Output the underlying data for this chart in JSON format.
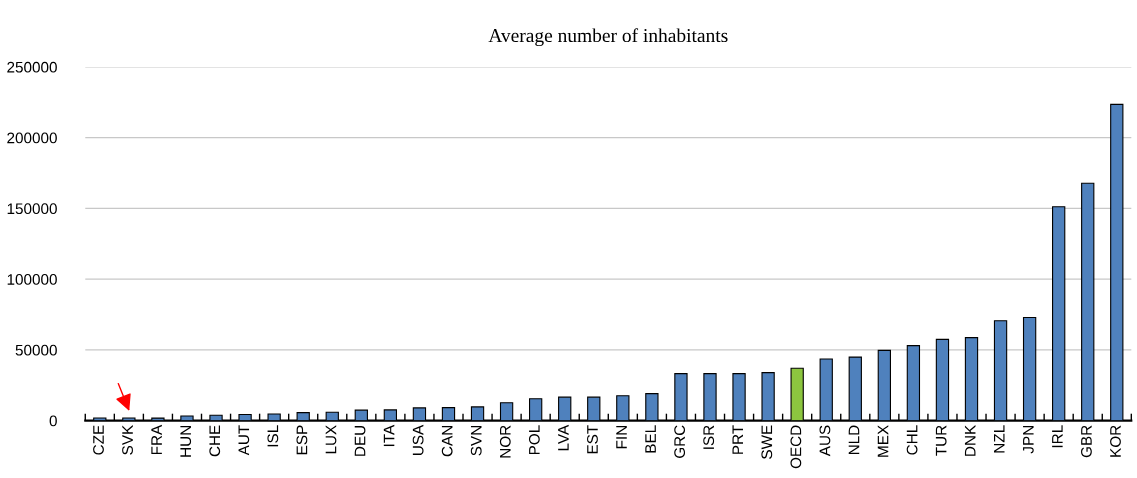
{
  "chart_data": {
    "type": "bar",
    "title": "Average number of inhabitants",
    "categories": [
      "CZE",
      "SVK",
      "FRA",
      "HUN",
      "CHE",
      "AUT",
      "ISL",
      "ESP",
      "LUX",
      "DEU",
      "ITA",
      "USA",
      "CAN",
      "SVN",
      "NOR",
      "POL",
      "LVA",
      "EST",
      "FIN",
      "BEL",
      "GRC",
      "ISR",
      "PRT",
      "SWE",
      "OECD",
      "AUS",
      "NLD",
      "MEX",
      "CHL",
      "TUR",
      "DNK",
      "NZL",
      "JPN",
      "IRL",
      "GBR",
      "KOR"
    ],
    "values": [
      1900,
      1900,
      1800,
      3300,
      3800,
      4300,
      4700,
      5700,
      5900,
      7400,
      7600,
      9000,
      9200,
      9700,
      12600,
      15500,
      16600,
      16600,
      17600,
      19100,
      33200,
      33200,
      33200,
      33900,
      37000,
      43600,
      44900,
      49700,
      53000,
      57400,
      58700,
      70600,
      72900,
      151200,
      167800,
      223500
    ],
    "colors": [
      "#4f81bd",
      "#4f81bd",
      "#4f81bd",
      "#4f81bd",
      "#4f81bd",
      "#4f81bd",
      "#4f81bd",
      "#4f81bd",
      "#4f81bd",
      "#4f81bd",
      "#4f81bd",
      "#4f81bd",
      "#4f81bd",
      "#4f81bd",
      "#4f81bd",
      "#4f81bd",
      "#4f81bd",
      "#4f81bd",
      "#4f81bd",
      "#4f81bd",
      "#4f81bd",
      "#4f81bd",
      "#4f81bd",
      "#4f81bd",
      "#8cc63f",
      "#4f81bd",
      "#4f81bd",
      "#4f81bd",
      "#4f81bd",
      "#4f81bd",
      "#4f81bd",
      "#4f81bd",
      "#4f81bd",
      "#4f81bd",
      "#4f81bd",
      "#4f81bd"
    ],
    "ylim": [
      0,
      250000
    ],
    "yticks": [
      0,
      50000,
      100000,
      150000,
      200000,
      250000
    ],
    "grid": "y"
  }
}
